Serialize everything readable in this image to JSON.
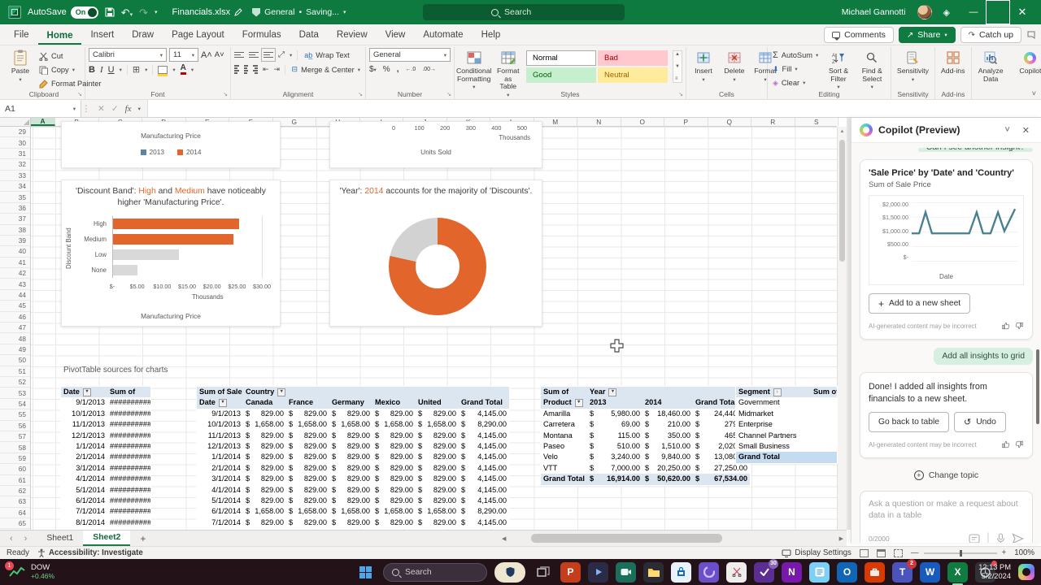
{
  "colors": {
    "excel_green": "#0e7a3f",
    "accent_orange": "#e2662c",
    "legend_blue": "#5b84a7",
    "bar_gray": "#d9d9d9",
    "copilot_line": "#47808e"
  },
  "titlebar": {
    "autosave_label": "AutoSave",
    "autosave_state": "On",
    "filename": "Financials.xlsx",
    "doc_label": "General",
    "doc_saving": "Saving...",
    "search_placeholder": "Search",
    "user_name": "Michael Gannotti"
  },
  "ribbon": {
    "tabs": [
      "File",
      "Home",
      "Insert",
      "Draw",
      "Page Layout",
      "Formulas",
      "Data",
      "Review",
      "View",
      "Automate",
      "Help"
    ],
    "active_tab": "Home",
    "comments": "Comments",
    "share": "Share",
    "catch_up": "Catch up",
    "clipboard": {
      "paste": "Paste",
      "cut": "Cut",
      "copy": "Copy",
      "format_painter": "Format Painter"
    },
    "font": {
      "name": "Calibri",
      "size": "11",
      "bold": "B",
      "italic": "I",
      "underline": "U"
    },
    "alignment": {
      "wrap": "Wrap Text",
      "merge": "Merge & Center"
    },
    "number": {
      "format": "General",
      "currency": "$",
      "percent": "%",
      "comma": ",",
      "inc_dec": ".00",
      "dec_dec": ".0"
    },
    "styles": {
      "conditional": "Conditional Formatting",
      "format_table": "Format as Table",
      "gallery": [
        {
          "label": "Normal",
          "bg": "#ffffff",
          "fg": "#000000",
          "border": "#ababab"
        },
        {
          "label": "Bad",
          "bg": "#ffc7ce",
          "fg": "#9c0006",
          "border": "#ffc7ce"
        },
        {
          "label": "Good",
          "bg": "#c6efce",
          "fg": "#006100",
          "border": "#c6efce"
        },
        {
          "label": "Neutral",
          "bg": "#ffeb9c",
          "fg": "#9c6500",
          "border": "#ffeb9c"
        }
      ]
    },
    "cells": {
      "insert": "Insert",
      "delete": "Delete",
      "format": "Format"
    },
    "editing": {
      "autosum": "AutoSum",
      "fill": "Fill",
      "clear": "Clear",
      "sort_filter": "Sort & Filter",
      "find_select": "Find & Select"
    },
    "sensitivity": "Sensitivity",
    "addins": "Add-ins",
    "analyze_data": "Analyze Data",
    "copilot": "Copilot",
    "group_labels": [
      "Clipboard",
      "Font",
      "Alignment",
      "Number",
      "Styles",
      "Cells",
      "Editing",
      "Sensitivity",
      "Add-ins"
    ]
  },
  "formula_bar": {
    "cell_ref": "A1",
    "fx": "fx"
  },
  "grid": {
    "columns": [
      "A",
      "B",
      "C",
      "D",
      "E",
      "F",
      "G",
      "H",
      "I",
      "J",
      "K",
      "L",
      "M",
      "N",
      "O",
      "P",
      "Q",
      "R",
      "S"
    ],
    "selected_column": "A",
    "row_numbers": [
      29,
      30,
      31,
      32,
      33,
      34,
      35,
      36,
      37,
      38,
      39,
      40,
      41,
      42,
      43,
      44,
      45,
      46,
      47,
      48,
      49,
      50,
      51,
      52,
      53,
      54,
      55,
      56,
      57,
      58,
      59,
      60,
      61,
      62,
      63,
      64,
      65
    ]
  },
  "sheet": {
    "pivot_note": "PivotTable sources for charts"
  },
  "chart_data": [
    {
      "type": "bar",
      "title": "Manufacturing Price",
      "partial": true,
      "legend": [
        {
          "label": "2013",
          "color": "#5b84a7"
        },
        {
          "label": "2014",
          "color": "#e2662c"
        }
      ]
    },
    {
      "type": "bar",
      "title": "Units Sold",
      "partial": true,
      "unit": "Thousands",
      "xticks": [
        "0",
        "100",
        "200",
        "300",
        "400",
        "500"
      ]
    },
    {
      "type": "bar",
      "orientation": "horizontal",
      "title_parts": [
        {
          "t": "'Discount Band': "
        },
        {
          "t": "High",
          "hl": true
        },
        {
          "t": " and "
        },
        {
          "t": "Medium",
          "hl": true
        },
        {
          "t": " have noticeably higher 'Manufacturing Price'."
        }
      ],
      "categories": [
        "High",
        "Medium",
        "Low",
        "None"
      ],
      "values": [
        25.4,
        24.3,
        13.3,
        4.9
      ],
      "colors": [
        "#e2662c",
        "#e2662c",
        "#d9d9d9",
        "#d9d9d9"
      ],
      "xticks": [
        "$-",
        "$5.00",
        "$10.00",
        "$15.00",
        "$20.00",
        "$25.00",
        "$30.00"
      ],
      "xlim": [
        0,
        30
      ],
      "unit": "Thousands",
      "xlabel": "Manufacturing Price",
      "ylabel": "Discount Band"
    },
    {
      "type": "donut",
      "title_parts": [
        {
          "t": "'Year': "
        },
        {
          "t": "2014",
          "hl": true
        },
        {
          "t": " accounts for the majority of 'Discounts'."
        }
      ],
      "slices": [
        {
          "label": "2014",
          "value": 78.5,
          "color": "#e2662c"
        },
        {
          "label": "2013",
          "value": 21.5,
          "color": "#d2d2d2"
        }
      ]
    },
    {
      "type": "line",
      "title": "'Sale Price' by 'Date' and 'Country'",
      "ylabel": "Sum of Sale Price",
      "xlabel": "Date",
      "ylim": [
        0,
        2000
      ],
      "yticks": [
        "$2,000.00",
        "$1,500.00",
        "$1,000.00",
        "$500.00",
        "$-"
      ],
      "color": "#47808e",
      "points": [
        [
          0,
          1000
        ],
        [
          7,
          1000
        ],
        [
          13,
          1780
        ],
        [
          19,
          1000
        ],
        [
          54,
          1000
        ],
        [
          61,
          1780
        ],
        [
          67,
          1000
        ],
        [
          74,
          1000
        ],
        [
          81,
          1780
        ],
        [
          87,
          1080
        ],
        [
          97,
          1900
        ]
      ]
    }
  ],
  "tables": {
    "t1": {
      "headers": [
        "Date",
        "Sum of"
      ],
      "rows": [
        [
          "9/1/2013",
          "##########"
        ],
        [
          "10/1/2013",
          "##########"
        ],
        [
          "11/1/2013",
          "##########"
        ],
        [
          "12/1/2013",
          "##########"
        ],
        [
          "1/1/2014",
          "##########"
        ],
        [
          "2/1/2014",
          "##########"
        ],
        [
          "3/1/2014",
          "##########"
        ],
        [
          "4/1/2014",
          "##########"
        ],
        [
          "5/1/2014",
          "##########"
        ],
        [
          "6/1/2014",
          "##########"
        ],
        [
          "7/1/2014",
          "##########"
        ],
        [
          "8/1/2014",
          "##########"
        ]
      ]
    },
    "t2": {
      "corner": "Sum of Sale",
      "col_dim": "Country",
      "row_dim": "Date",
      "columns": [
        "Canada",
        "France",
        "Germany",
        "Mexico",
        "United",
        "Grand Total"
      ],
      "rows": [
        [
          "9/1/2013",
          "$ 829.00",
          "$ 829.00",
          "$ 829.00",
          "$ 829.00",
          "$ 829.00",
          "$ 4,145.00"
        ],
        [
          "10/1/2013",
          "$ 1,658.00",
          "$ 1,658.00",
          "$ 1,658.00",
          "$ 1,658.00",
          "$ 1,658.00",
          "$ 8,290.00"
        ],
        [
          "11/1/2013",
          "$ 829.00",
          "$ 829.00",
          "$ 829.00",
          "$ 829.00",
          "$ 829.00",
          "$ 4,145.00"
        ],
        [
          "12/1/2013",
          "$ 829.00",
          "$ 829.00",
          "$ 829.00",
          "$ 829.00",
          "$ 829.00",
          "$ 4,145.00"
        ],
        [
          "1/1/2014",
          "$ 829.00",
          "$ 829.00",
          "$ 829.00",
          "$ 829.00",
          "$ 829.00",
          "$ 4,145.00"
        ],
        [
          "2/1/2014",
          "$ 829.00",
          "$ 829.00",
          "$ 829.00",
          "$ 829.00",
          "$ 829.00",
          "$ 4,145.00"
        ],
        [
          "3/1/2014",
          "$ 829.00",
          "$ 829.00",
          "$ 829.00",
          "$ 829.00",
          "$ 829.00",
          "$ 4,145.00"
        ],
        [
          "4/1/2014",
          "$ 829.00",
          "$ 829.00",
          "$ 829.00",
          "$ 829.00",
          "$ 829.00",
          "$ 4,145.00"
        ],
        [
          "5/1/2014",
          "$ 829.00",
          "$ 829.00",
          "$ 829.00",
          "$ 829.00",
          "$ 829.00",
          "$ 4,145.00"
        ],
        [
          "6/1/2014",
          "$ 1,658.00",
          "$ 1,658.00",
          "$ 1,658.00",
          "$ 1,658.00",
          "$ 1,658.00",
          "$ 8,290.00"
        ],
        [
          "7/1/2014",
          "$ 829.00",
          "$ 829.00",
          "$ 829.00",
          "$ 829.00",
          "$ 829.00",
          "$ 4,145.00"
        ]
      ]
    },
    "t3": {
      "corner": "Sum of",
      "col_dim": "Year",
      "row_dim": "Product",
      "columns": [
        "2013",
        "2014",
        "Grand Total"
      ],
      "rows": [
        [
          "Amarilla",
          "$ 5,980.00",
          "$ 18,460.00",
          "$ 24,440.00"
        ],
        [
          "Carretera",
          "$ 69.00",
          "$ 210.00",
          "$ 279.00"
        ],
        [
          "Montana",
          "$ 115.00",
          "$ 350.00",
          "$ 465.00"
        ],
        [
          "Paseo",
          "$ 510.00",
          "$ 1,510.00",
          "$ 2,020.00"
        ],
        [
          "Velo",
          "$ 3,240.00",
          "$ 9,840.00",
          "$ 13,080.00"
        ],
        [
          "VTT",
          "$ 7,000.00",
          "$ 20,250.00",
          "$ 27,250.00"
        ],
        [
          "Grand Total",
          "$ 16,914.00",
          "$ 50,620.00",
          "$ 67,534.00"
        ]
      ]
    },
    "t4": {
      "headers": [
        "Segment",
        "Sum of"
      ],
      "rows": [
        [
          "Government",
          ""
        ],
        [
          "Midmarket",
          ""
        ],
        [
          "Enterprise",
          ""
        ],
        [
          "Channel Partners",
          ""
        ],
        [
          "Small Business",
          ""
        ],
        [
          "Grand Total",
          ""
        ]
      ]
    }
  },
  "copilot_pane": {
    "title": "Copilot (Preview)",
    "clipped_bubble": "Can I see another insight?",
    "insight_card": {
      "title": "'Sale Price' by 'Date' and 'Country'",
      "subtitle": "Sum of Sale Price",
      "xlabel": "Date",
      "add_button": "Add to a new sheet",
      "disclaimer": "AI-generated content may be incorrect"
    },
    "user_bubble": "Add all insights to grid",
    "done_card": {
      "text": "Done! I added all insights from financials to a new sheet.",
      "back_button": "Go back to table",
      "undo_button": "Undo",
      "disclaimer": "AI-generated content may be incorrect"
    },
    "change_topic": "Change topic",
    "input": {
      "placeholder": "Ask a question or make a request about data in a table",
      "counter": "0/2000"
    }
  },
  "sheet_tabs": {
    "tabs": [
      "Sheet1",
      "Sheet2"
    ],
    "active": "Sheet2"
  },
  "status_bar": {
    "ready": "Ready",
    "accessibility": "Accessibility: Investigate",
    "display_settings": "Display Settings",
    "zoom": "100%"
  },
  "taskbar": {
    "widget": {
      "name": "DOW",
      "change": "+0.46%",
      "badge": "1"
    },
    "search_placeholder": "Search",
    "clock_time": "12:13 PM",
    "clock_date": "5/2/2024",
    "icons": [
      {
        "name": "security-shield-icon",
        "bg": "#efe6d2",
        "glyph": "shield",
        "pill": true
      },
      {
        "name": "task-view-icon",
        "bg": "transparent",
        "glyph": "taskview"
      },
      {
        "name": "powerpoint-icon",
        "bg": "#c43e1c",
        "glyph": "P"
      },
      {
        "name": "clipchamp-icon",
        "bg": "#2b2b46",
        "glyph": "play"
      },
      {
        "name": "camera-icon",
        "bg": "#1c6e5a",
        "glyph": "cam"
      },
      {
        "name": "file-explorer-icon",
        "bg": "#2b2b35",
        "glyph": "folder"
      },
      {
        "name": "store-icon",
        "bg": "#e8f2fb",
        "glyph": "store"
      },
      {
        "name": "loop-icon",
        "bg": "#6b4fc9",
        "glyph": "swirl"
      },
      {
        "name": "snipping-tool-icon",
        "bg": "#f0eeec",
        "glyph": "scissors"
      },
      {
        "name": "todo-icon",
        "bg": "#5c2e91",
        "glyph": "check",
        "badge": "30",
        "badge_color": "#8764b8"
      },
      {
        "name": "onenote-icon",
        "bg": "#7719aa",
        "glyph": "N"
      },
      {
        "name": "notepad-icon",
        "bg": "#7ccff5",
        "glyph": "lines"
      },
      {
        "name": "outlook-icon",
        "bg": "#1066b5",
        "glyph": "O"
      },
      {
        "name": "whiteboard-icon",
        "bg": "#d83b01",
        "glyph": "bag"
      },
      {
        "name": "teams-icon",
        "bg": "#4b53bc",
        "glyph": "T",
        "badge": "2",
        "badge_color": "#d13438"
      },
      {
        "name": "word-icon",
        "bg": "#185abd",
        "glyph": "W"
      },
      {
        "name": "excel-icon",
        "bg": "#107c41",
        "glyph": "X",
        "active": true
      },
      {
        "name": "clock-icon",
        "bg": "#303036",
        "glyph": "clock",
        "dot": true
      }
    ]
  }
}
